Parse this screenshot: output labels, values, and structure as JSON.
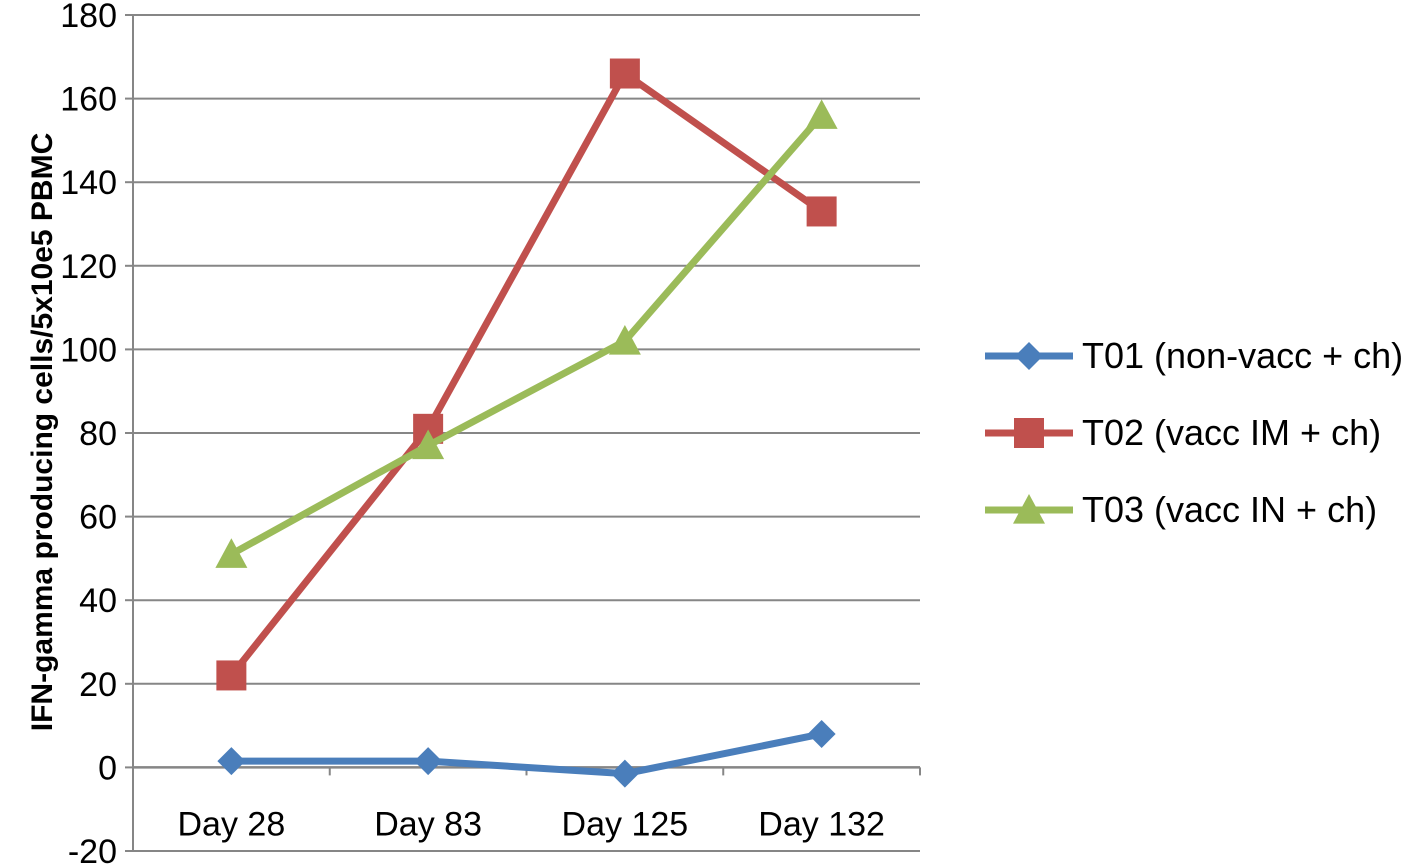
{
  "chart_data": {
    "type": "line",
    "title": "",
    "xlabel": "",
    "ylabel": "IFN-gamma producing cells/5x10e5 PBMC",
    "categories": [
      "Day 28",
      "Day 83",
      "Day 125",
      "Day 132"
    ],
    "ylim": [
      -20,
      180
    ],
    "yticks": [
      -20,
      0,
      20,
      40,
      60,
      80,
      100,
      120,
      140,
      160,
      180
    ],
    "grid": true,
    "legend_position": "right",
    "series": [
      {
        "name": "T01 (non-vacc + ch)",
        "values": [
          1.5,
          1.5,
          -1.5,
          8
        ],
        "color": "#4a7ebb",
        "marker": "diamond"
      },
      {
        "name": "T02 (vacc IM + ch)",
        "values": [
          22,
          81,
          166,
          133
        ],
        "color": "#c0504d",
        "marker": "square"
      },
      {
        "name": "T03 (vacc IN + ch)",
        "values": [
          51,
          77,
          102,
          156
        ],
        "color": "#9bbb59",
        "marker": "triangle"
      }
    ]
  }
}
